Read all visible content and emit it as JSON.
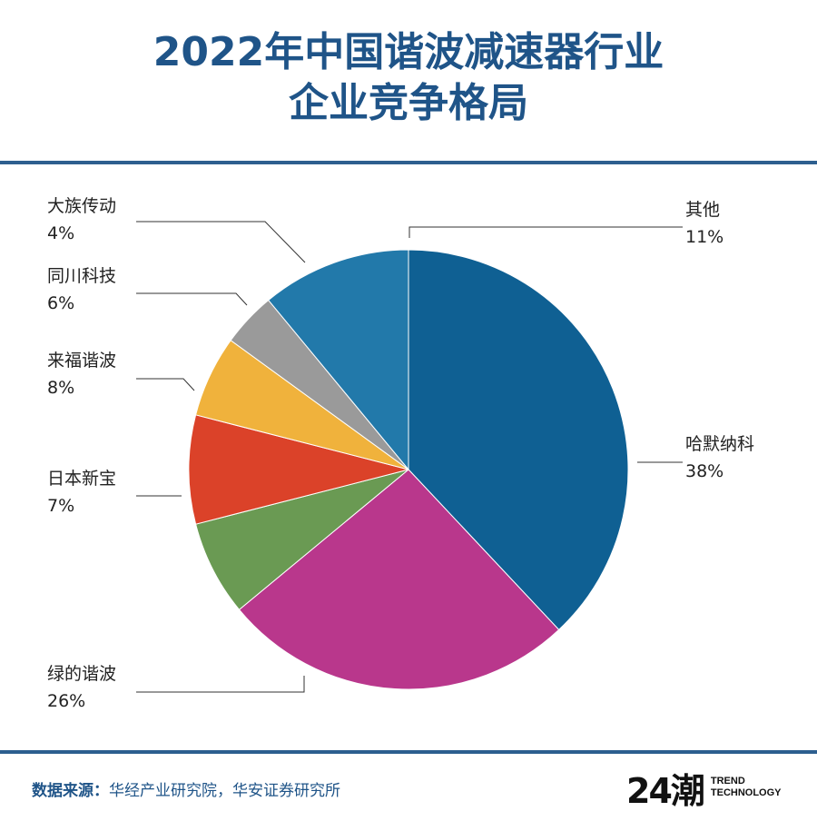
{
  "title": {
    "line1": "2022年中国谐波减速器行业",
    "line2": "企业竞争格局"
  },
  "chart_data": {
    "type": "pie",
    "start_angle_deg": -90,
    "direction": "clockwise",
    "slices": [
      {
        "name": "哈默纳科",
        "label": "哈默纳科",
        "value": 38,
        "percent_label": "38%",
        "color": "#0f6093"
      },
      {
        "name": "绿的谐波",
        "label": "绿的谐波",
        "value": 26,
        "percent_label": "26%",
        "color": "#b9378c"
      },
      {
        "name": "日本新宝",
        "label": "日本新宝",
        "value": 7,
        "percent_label": "7%",
        "color": "#6a9a53"
      },
      {
        "name": "来福谐波",
        "label": "来福谐波",
        "value": 8,
        "percent_label": "8%",
        "color": "#db4229"
      },
      {
        "name": "同川科技",
        "label": "同川科技",
        "value": 6,
        "percent_label": "6%",
        "color": "#f0b23c"
      },
      {
        "name": "大族传动",
        "label": "大族传动",
        "value": 4,
        "percent_label": "4%",
        "color": "#9a9a9a"
      },
      {
        "name": "其他",
        "label": "其他",
        "value": 11,
        "percent_label": "11%",
        "color": "#2279aa"
      }
    ]
  },
  "footer": {
    "source_label": "数据来源：",
    "source_text": "华经产业研究院，华安证券研究所",
    "brand_mark": "24潮",
    "brand_line1": "TREND",
    "brand_line2": "TECHNOLOGY"
  }
}
